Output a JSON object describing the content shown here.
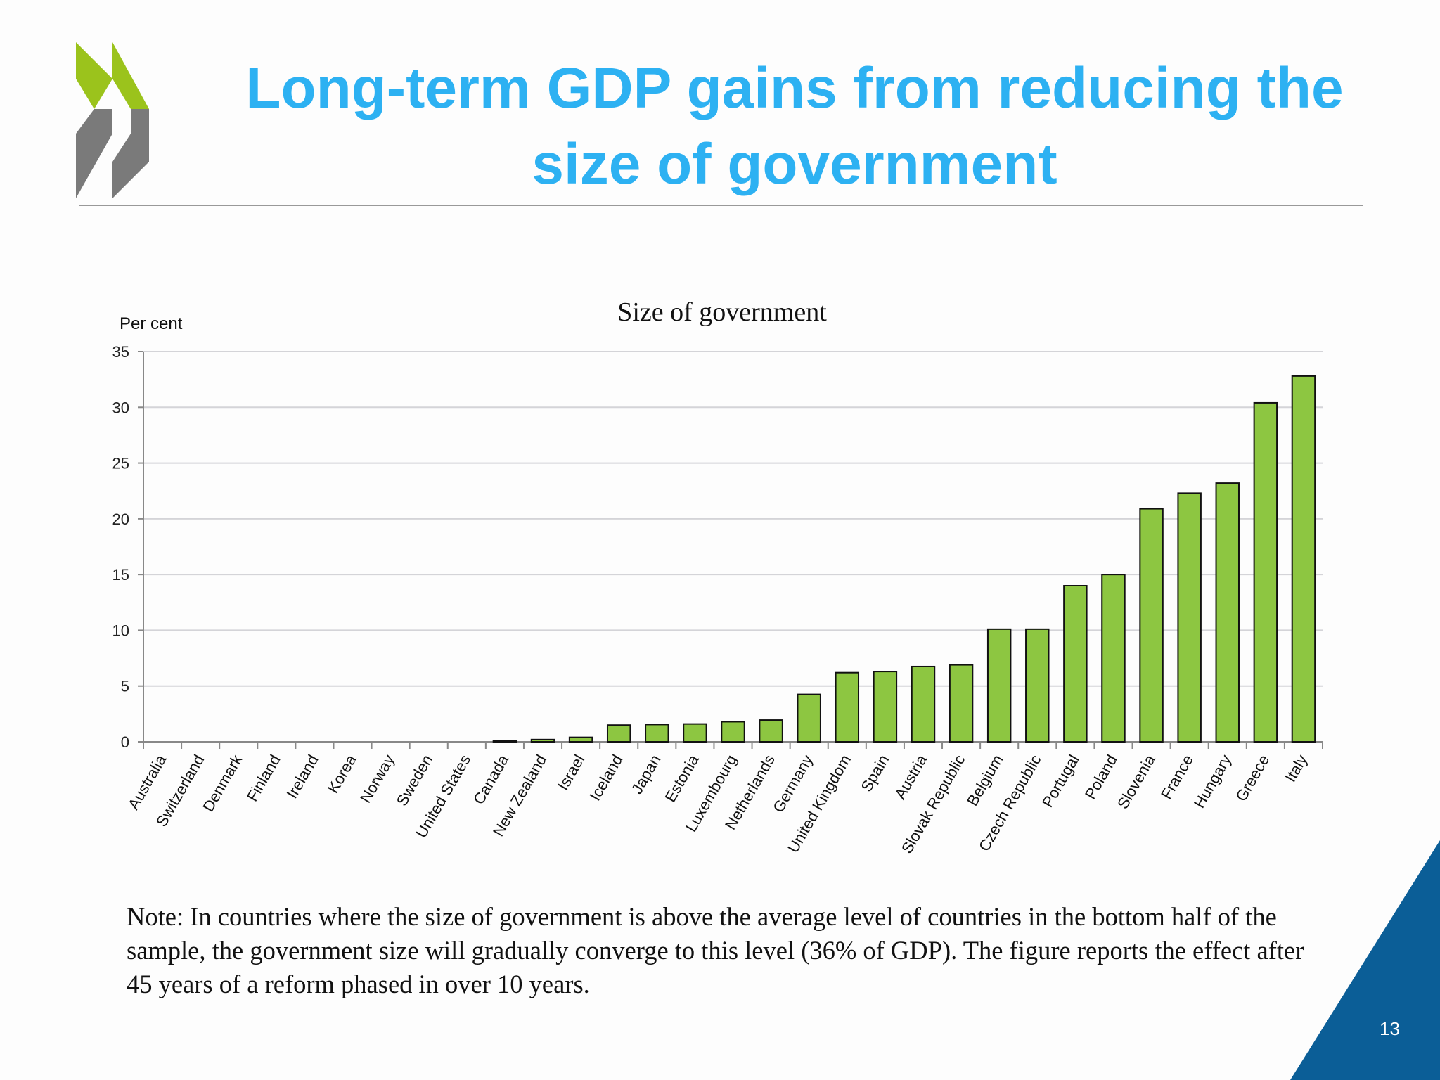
{
  "slide": {
    "title_line1": "Long-term GDP gains from reducing the",
    "title_line2": "size of government",
    "note": "Note: In countries where the size of government is above the average level of countries in the bottom half of the sample, the government size will gradually converge to this level (36% of GDP). The figure reports the effect after 45 years of a reform phased in over 10 years.",
    "page_number": "13",
    "colors": {
      "title": "#2db1f2",
      "bar": "#8dc641",
      "logo_green": "#9bc31c",
      "logo_gray": "#7a7a7a",
      "corner": "#0b5e97"
    }
  },
  "chart_data": {
    "type": "bar",
    "title": "Size of government",
    "ylabel": "Per cent",
    "xlabel": "",
    "ylim": [
      0,
      35
    ],
    "yticks": [
      0,
      5,
      10,
      15,
      20,
      25,
      30,
      35
    ],
    "grid": true,
    "categories": [
      "Australia",
      "Switzerland",
      "Denmark",
      "Finland",
      "Ireland",
      "Korea",
      "Norway",
      "Sweden",
      "United States",
      "Canada",
      "New Zealand",
      "Israel",
      "Iceland",
      "Japan",
      "Estonia",
      "Luxembourg",
      "Netherlands",
      "Germany",
      "United Kingdom",
      "Spain",
      "Austria",
      "Slovak Republic",
      "Belgium",
      "Czech Republic",
      "Portugal",
      "Poland",
      "Slovenia",
      "France",
      "Hungary",
      "Greece",
      "Italy"
    ],
    "values": [
      0,
      0,
      0,
      0,
      0,
      0,
      0,
      0,
      0,
      0.1,
      0.2,
      0.4,
      1.5,
      1.55,
      1.6,
      1.8,
      1.95,
      4.25,
      6.2,
      6.3,
      6.75,
      6.9,
      10.1,
      10.1,
      14.0,
      15.0,
      20.9,
      22.3,
      23.2,
      30.4,
      32.8
    ]
  }
}
